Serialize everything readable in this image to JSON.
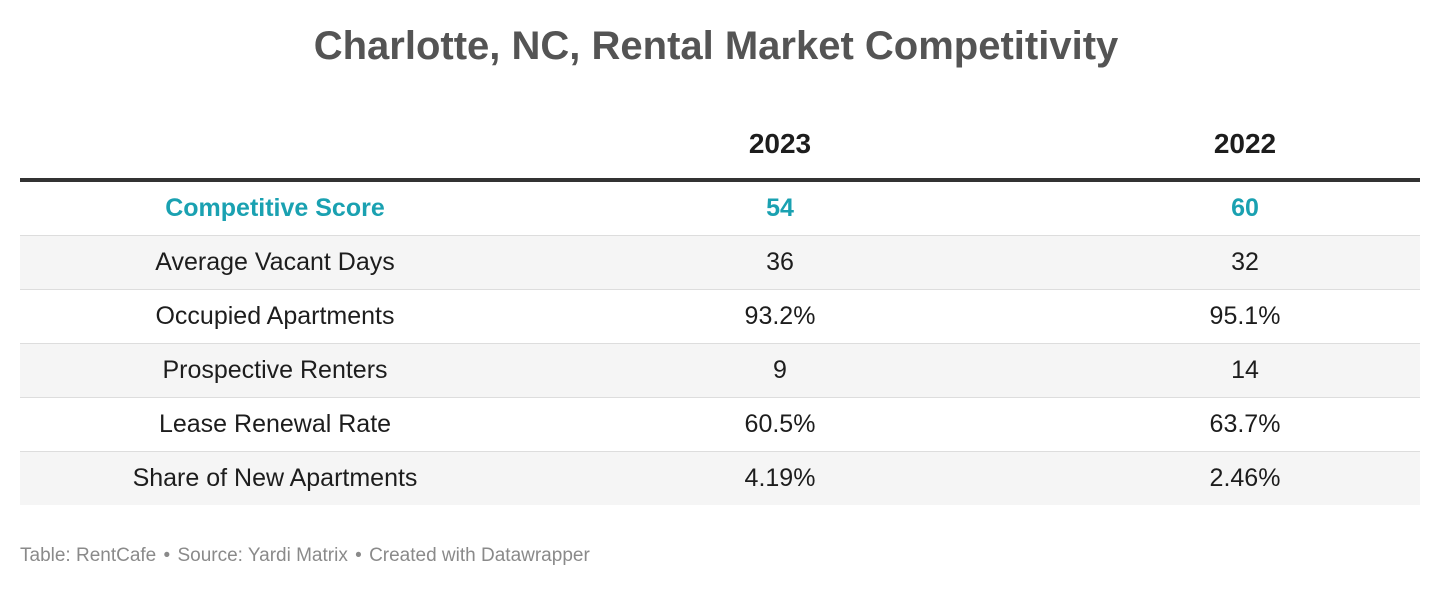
{
  "title": "Charlotte, NC, Rental Market Competitivity",
  "chart_data": {
    "type": "table",
    "title": "Charlotte, NC, Rental Market Competitivity",
    "columns": [
      "",
      "2023",
      "2022"
    ],
    "rows": [
      {
        "label": "Competitive Score",
        "values": [
          "54",
          "60"
        ],
        "highlight": true
      },
      {
        "label": "Average Vacant Days",
        "values": [
          "36",
          "32"
        ]
      },
      {
        "label": "Occupied Apartments",
        "values": [
          "93.2%",
          "95.1%"
        ]
      },
      {
        "label": "Prospective Renters",
        "values": [
          "9",
          "14"
        ]
      },
      {
        "label": "Lease Renewal Rate",
        "values": [
          "60.5%",
          "63.7%"
        ]
      },
      {
        "label": "Share of New Apartments",
        "values": [
          "4.19%",
          "2.46%"
        ]
      }
    ],
    "highlight_color": "#1aa1b1"
  },
  "footer": {
    "table": "Table: RentCafe",
    "source": "Source: Yardi Matrix",
    "credit": "Created with Datawrapper",
    "separator": "•"
  }
}
